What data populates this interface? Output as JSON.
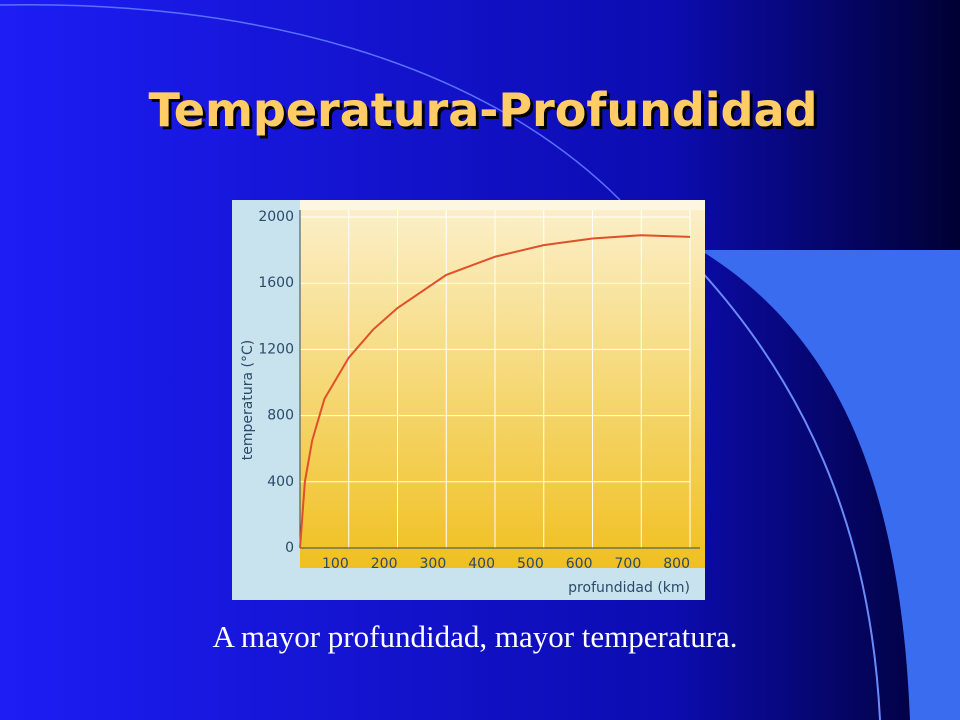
{
  "slide": {
    "title": "Temperatura-Profundidad",
    "caption": "A mayor profundidad, mayor temperatura."
  },
  "chart_data": {
    "type": "line",
    "x": [
      0,
      10,
      25,
      50,
      100,
      150,
      200,
      300,
      400,
      500,
      600,
      700,
      800
    ],
    "series": [
      {
        "color": "#e0502a",
        "values": [
          0,
          400,
          650,
          900,
          1150,
          1320,
          1450,
          1650,
          1760,
          1830,
          1870,
          1890,
          1880
        ]
      }
    ],
    "xlim": [
      0,
      800
    ],
    "xticks": [
      100,
      200,
      300,
      400,
      500,
      600,
      700,
      800
    ],
    "ylim": [
      0,
      2000
    ],
    "yticks": [
      0,
      400,
      800,
      1200,
      1600,
      2000
    ],
    "x_label": "profundidad (km)",
    "y_label": "temperatura (°C)",
    "grid": true
  }
}
